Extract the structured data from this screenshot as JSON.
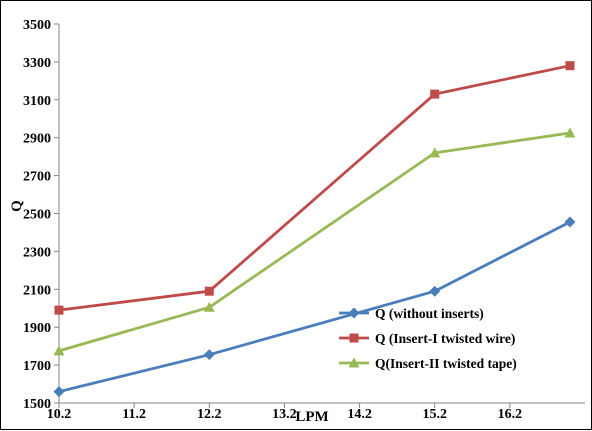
{
  "chart_data": {
    "type": "line",
    "title": "",
    "xlabel": "LPM",
    "ylabel": "Q",
    "xlim": [
      10.2,
      17.2
    ],
    "ylim": [
      1500,
      3500
    ],
    "x_ticks": [
      "10.2",
      "11.2",
      "12.2",
      "13.2",
      "14.2",
      "15.2",
      "16.2"
    ],
    "y_ticks": [
      "1500",
      "1700",
      "1900",
      "2100",
      "2300",
      "2500",
      "2700",
      "2900",
      "3100",
      "3300",
      "3500"
    ],
    "grid": false,
    "legend_position": "bottom-right",
    "x": [
      10.2,
      12.2,
      15.2,
      17.0
    ],
    "series": [
      {
        "name": "Q (without inserts)",
        "color": "#4a7ebb",
        "marker": "diamond",
        "values": [
          1560,
          1755,
          2090,
          2455
        ]
      },
      {
        "name": "Q (Insert-I twisted wire)",
        "color": "#be4b48",
        "marker": "square",
        "values": [
          1990,
          2090,
          3130,
          3280
        ]
      },
      {
        "name": "Q(Insert-II  twisted tape)",
        "color": "#98b954",
        "marker": "triangle",
        "values": [
          1775,
          2005,
          2820,
          2925
        ]
      }
    ]
  }
}
